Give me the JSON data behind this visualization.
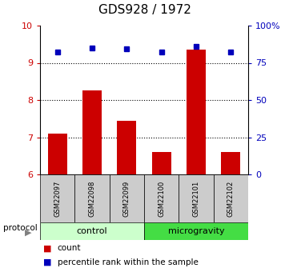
{
  "title": "GDS928 / 1972",
  "samples": [
    "GSM22097",
    "GSM22098",
    "GSM22099",
    "GSM22100",
    "GSM22101",
    "GSM22102"
  ],
  "bar_values": [
    7.1,
    8.25,
    7.45,
    6.6,
    9.35,
    6.6
  ],
  "dot_values": [
    9.3,
    9.4,
    9.38,
    9.28,
    9.45,
    9.28
  ],
  "bar_color": "#cc0000",
  "dot_color": "#0000bb",
  "ylim_left": [
    6,
    10
  ],
  "yticks_left": [
    6,
    7,
    8,
    9,
    10
  ],
  "yticks_right": [
    0,
    25,
    50,
    75,
    100
  ],
  "ytick_labels_right": [
    "0",
    "25",
    "50",
    "75",
    "100%"
  ],
  "groups": [
    {
      "label": "control",
      "indices": [
        0,
        1,
        2
      ],
      "color": "#ccffcc"
    },
    {
      "label": "microgravity",
      "indices": [
        3,
        4,
        5
      ],
      "color": "#44dd44"
    }
  ],
  "protocol_label": "protocol",
  "legend_items": [
    {
      "label": "count",
      "color": "#cc0000"
    },
    {
      "label": "percentile rank within the sample",
      "color": "#0000bb"
    }
  ],
  "bar_width": 0.55,
  "sample_area_color": "#cccccc",
  "title_fontsize": 11,
  "axis_color_left": "#cc0000",
  "axis_color_right": "#0000bb"
}
